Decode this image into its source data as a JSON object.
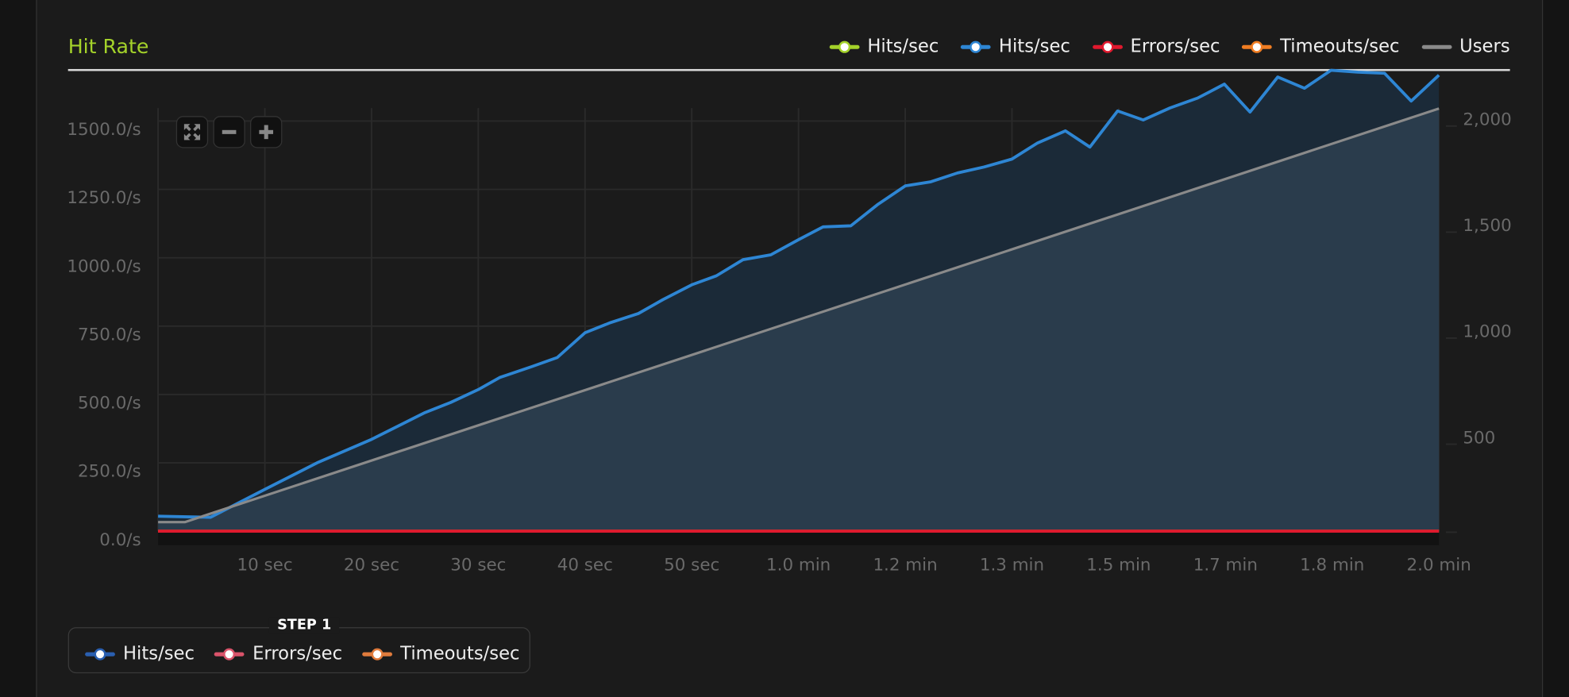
{
  "panel": {
    "title": "Hit Rate",
    "legend": [
      {
        "label": "Hits/sec",
        "color": "#a4d22a"
      },
      {
        "label": "Hits/sec",
        "color": "#2e86d4"
      },
      {
        "label": "Errors/sec",
        "color": "#e0192e"
      },
      {
        "label": "Timeouts/sec",
        "color": "#f07d22"
      },
      {
        "label": "Users",
        "color": "#8a8a8a"
      }
    ],
    "zoom_controls": [
      {
        "name": "fit",
        "glyph": "⛶"
      },
      {
        "name": "zoom-out",
        "glyph": "−"
      },
      {
        "name": "zoom-in",
        "glyph": "+"
      }
    ],
    "step": {
      "title": "STEP 1",
      "items": [
        {
          "label": "Hits/sec",
          "color": "#2a5fb0"
        },
        {
          "label": "Errors/sec",
          "color": "#d9536a"
        },
        {
          "label": "Timeouts/sec",
          "color": "#e07b3c"
        }
      ]
    }
  },
  "chart_data": {
    "type": "line",
    "x_unit": "seconds",
    "xlim": [
      0,
      120
    ],
    "ylim_left": [
      0,
      1550
    ],
    "ylim_right": [
      0,
      2050
    ],
    "grid": true,
    "legend_placement": "top-right",
    "x_ticks": [
      {
        "x": 10,
        "label": "10 sec"
      },
      {
        "x": 20,
        "label": "20 sec"
      },
      {
        "x": 30,
        "label": "30 sec"
      },
      {
        "x": 40,
        "label": "40 sec"
      },
      {
        "x": 50,
        "label": "50 sec"
      },
      {
        "x": 60,
        "label": "1.0 min"
      },
      {
        "x": 70,
        "label": "1.2 min"
      },
      {
        "x": 80,
        "label": "1.3 min"
      },
      {
        "x": 90,
        "label": "1.5 min"
      },
      {
        "x": 100,
        "label": "1.7 min"
      },
      {
        "x": 110,
        "label": "1.8 min"
      },
      {
        "x": 120,
        "label": "2.0 min"
      }
    ],
    "y_left_ticks": [
      {
        "v": 0,
        "label": "0.0/s"
      },
      {
        "v": 250,
        "label": "250.0/s"
      },
      {
        "v": 500,
        "label": "500.0/s"
      },
      {
        "v": 750,
        "label": "750.0/s"
      },
      {
        "v": 1000,
        "label": "1000.0/s"
      },
      {
        "v": 1250,
        "label": "1250.0/s"
      },
      {
        "v": 1500,
        "label": "1500.0/s"
      }
    ],
    "y_right_ticks": [
      {
        "v": 500,
        "label": "500"
      },
      {
        "v": 1000,
        "label": "1,000"
      },
      {
        "v": 1500,
        "label": "1,500"
      },
      {
        "v": 2000,
        "label": "2,000"
      }
    ],
    "series": [
      {
        "name": "Hits/sec",
        "axis": "left",
        "color": "#2e86d4",
        "area": true,
        "points": [
          [
            0,
            55
          ],
          [
            4.9,
            51
          ],
          [
            10,
            153
          ],
          [
            15,
            252
          ],
          [
            20,
            336
          ],
          [
            25,
            434
          ],
          [
            27.4,
            471
          ],
          [
            30,
            518
          ],
          [
            32,
            562
          ],
          [
            35,
            602
          ],
          [
            37.4,
            635
          ],
          [
            40,
            726
          ],
          [
            42.4,
            763
          ],
          [
            45,
            796
          ],
          [
            47.3,
            847
          ],
          [
            50,
            901
          ],
          [
            52.3,
            934
          ],
          [
            54.8,
            993
          ],
          [
            57.4,
            1011
          ],
          [
            60,
            1066
          ],
          [
            62.3,
            1113
          ],
          [
            64.9,
            1117
          ],
          [
            67.4,
            1194
          ],
          [
            70,
            1263
          ],
          [
            72.4,
            1278
          ],
          [
            74.9,
            1310
          ],
          [
            77.4,
            1332
          ],
          [
            80,
            1361
          ],
          [
            82.4,
            1420
          ],
          [
            85,
            1464
          ],
          [
            87.3,
            1405
          ],
          [
            89.9,
            1537
          ],
          [
            92.3,
            1504
          ],
          [
            94.8,
            1548
          ],
          [
            97.4,
            1584
          ],
          [
            99.9,
            1635
          ],
          [
            102.3,
            1533
          ],
          [
            104.9,
            1661
          ],
          [
            107.4,
            1620
          ],
          [
            109.9,
            1686
          ],
          [
            112.4,
            1679
          ],
          [
            114.9,
            1675
          ],
          [
            117.4,
            1573
          ],
          [
            120,
            1668
          ]
        ]
      },
      {
        "name": "Users",
        "axis": "right",
        "color": "#8a8a8a",
        "area": true,
        "points": [
          [
            0,
            95
          ],
          [
            2.5,
            95
          ],
          [
            120,
            2045
          ]
        ]
      },
      {
        "name": "Timeouts/sec",
        "axis": "left",
        "color": "#f07d22",
        "points": [
          [
            0,
            0
          ],
          [
            120,
            0
          ]
        ]
      },
      {
        "name": "Errors/sec",
        "axis": "left",
        "color": "#e0192e",
        "points": [
          [
            0,
            0
          ],
          [
            120,
            0
          ]
        ]
      }
    ]
  }
}
